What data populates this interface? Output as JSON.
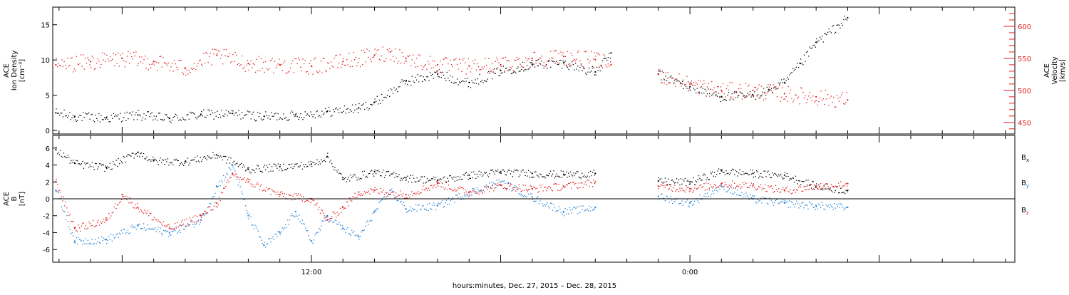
{
  "colors": {
    "black": "#000000",
    "red": "#e31b1b",
    "blue": "#1f7fd6"
  },
  "xlabel": "hours:minutes, Dec. 27, 2015 – Dec. 28, 2015",
  "x_tick_labels": [
    {
      "hour": 12,
      "label": "12:00"
    },
    {
      "hour": 24,
      "label": "0:00"
    }
  ],
  "chart_data": [
    {
      "type": "scatter",
      "panel": "top",
      "x_unit": "hours since 00:00 Dec. 27, 2015",
      "xlim": [
        3.8,
        34.3
      ],
      "left_axis": {
        "title_lines": [
          "ACE",
          "Ion Density",
          "[cm⁻³]"
        ],
        "ylim": [
          -0.5,
          17.5
        ],
        "ticks": [
          0,
          5,
          10,
          15
        ],
        "color": "#000000"
      },
      "right_axis": {
        "title_lines": [
          "ACE",
          "Velocity",
          "[km/s]"
        ],
        "ylim": [
          432,
          630
        ],
        "ticks": [
          450,
          500,
          550,
          600
        ],
        "color": "#e31b1b"
      },
      "series": [
        {
          "name": "Ion Density",
          "axis": "left",
          "color": "#000000",
          "x": [
            3.9,
            4.5,
            5.5,
            6.5,
            7.5,
            8.5,
            9.5,
            10.5,
            11.5,
            12.5,
            13.5,
            14.0,
            15.0,
            16.0,
            17.0,
            18.0,
            19.0,
            20.0,
            21.0,
            21.5,
            22.0,
            23.0,
            24.0,
            25.0,
            26.0,
            26.5,
            27.0,
            27.5,
            28.0,
            29.0
          ],
          "y": [
            2.5,
            2.0,
            1.8,
            2.2,
            1.7,
            2.3,
            2.4,
            2.0,
            2.2,
            2.7,
            3.2,
            4.0,
            7.0,
            8.0,
            6.8,
            8.5,
            9.4,
            9.6,
            8.3,
            11.0,
            null,
            8.0,
            6.2,
            4.8,
            5.0,
            5.8,
            6.8,
            9.5,
            12.5,
            16.0
          ]
        },
        {
          "name": "Velocity",
          "axis": "right",
          "color": "#e31b1b",
          "x": [
            3.9,
            5.0,
            6.0,
            7.0,
            8.0,
            9.0,
            10.0,
            11.0,
            12.0,
            13.0,
            14.0,
            14.5,
            15.0,
            16.0,
            17.0,
            18.0,
            19.0,
            20.0,
            21.0,
            21.5,
            22.0,
            23.0,
            24.0,
            25.0,
            26.0,
            27.0,
            28.0,
            29.0
          ],
          "y": [
            540,
            545,
            550,
            545,
            535,
            555,
            542,
            540,
            538,
            545,
            555,
            560,
            550,
            540,
            538,
            540,
            550,
            553,
            548,
            540,
            null,
            525,
            510,
            500,
            500,
            495,
            490,
            485
          ]
        }
      ]
    },
    {
      "type": "scatter",
      "panel": "bottom",
      "x_unit": "hours since 00:00 Dec. 27, 2015",
      "xlim": [
        3.8,
        34.3
      ],
      "left_axis": {
        "title_lines": [
          "ACE",
          "B",
          "[nT]"
        ],
        "ylim": [
          -7.5,
          7.5
        ],
        "ticks": [
          -6,
          -4,
          -2,
          0,
          2,
          4,
          6
        ],
        "color": "#000000"
      },
      "zero_line": true,
      "legend": [
        {
          "text": "B",
          "sub": "x",
          "color": "#000000"
        },
        {
          "text": "B",
          "sub": "y",
          "color": "#1f7fd6"
        },
        {
          "text": "B",
          "sub": "z",
          "color": "#e31b1b"
        }
      ],
      "series": [
        {
          "name": "Bx",
          "color": "#000000",
          "x": [
            3.9,
            4.5,
            5.5,
            6.5,
            7.0,
            8.0,
            9.0,
            10.0,
            11.0,
            12.0,
            12.5,
            13.0,
            14.0,
            15.0,
            16.0,
            17.0,
            18.0,
            19.0,
            20.0,
            21.0,
            22.0,
            23.0,
            24.0,
            25.0,
            26.0,
            27.0,
            28.0,
            29.0
          ],
          "y": [
            5.8,
            4.2,
            3.7,
            5.5,
            4.5,
            4.4,
            5.2,
            3.5,
            3.8,
            4.1,
            5.0,
            2.3,
            3.2,
            2.5,
            2.2,
            2.8,
            3.2,
            3.0,
            2.9,
            3.0,
            null,
            2.1,
            2.0,
            3.3,
            3.0,
            2.8,
            1.5,
            1.0
          ]
        },
        {
          "name": "By",
          "color": "#1f7fd6",
          "x": [
            3.9,
            4.5,
            5.5,
            6.5,
            7.5,
            8.5,
            9.0,
            9.5,
            10.0,
            10.5,
            11.0,
            11.5,
            12.0,
            12.5,
            13.0,
            13.5,
            14.0,
            14.5,
            15.0,
            16.0,
            17.0,
            18.0,
            19.0,
            20.0,
            21.0,
            22.0,
            23.0,
            24.0,
            25.0,
            26.0,
            27.0,
            28.0,
            29.0
          ],
          "y": [
            1.0,
            -5.0,
            -4.8,
            -3.2,
            -4.0,
            -2.5,
            1.5,
            4.0,
            -2.0,
            -5.5,
            -4.0,
            -1.5,
            -5.0,
            -2.0,
            -3.5,
            -4.5,
            -1.5,
            1.0,
            -1.2,
            -0.8,
            0.8,
            2.0,
            0.2,
            -1.5,
            -1.0,
            null,
            0.3,
            -0.5,
            1.5,
            0.0,
            -0.5,
            -0.8,
            -1.0
          ]
        },
        {
          "name": "Bz",
          "color": "#e31b1b",
          "x": [
            3.9,
            4.5,
            5.5,
            6.0,
            6.5,
            7.5,
            8.5,
            9.0,
            9.5,
            10.0,
            11.0,
            12.0,
            12.5,
            13.0,
            13.5,
            14.0,
            15.0,
            16.0,
            17.0,
            18.0,
            19.0,
            20.0,
            21.0,
            22.0,
            23.0,
            24.0,
            25.0,
            26.0,
            27.0,
            28.0,
            29.0
          ],
          "y": [
            2.0,
            -3.5,
            -2.5,
            0.5,
            -1.0,
            -3.5,
            -2.0,
            -0.5,
            3.0,
            2.0,
            0.5,
            0.0,
            -2.5,
            -1.0,
            0.8,
            1.0,
            0.5,
            1.8,
            0.8,
            1.6,
            1.2,
            1.5,
            2.0,
            null,
            1.5,
            1.2,
            1.8,
            1.6,
            1.0,
            1.5,
            1.8
          ]
        }
      ]
    }
  ]
}
